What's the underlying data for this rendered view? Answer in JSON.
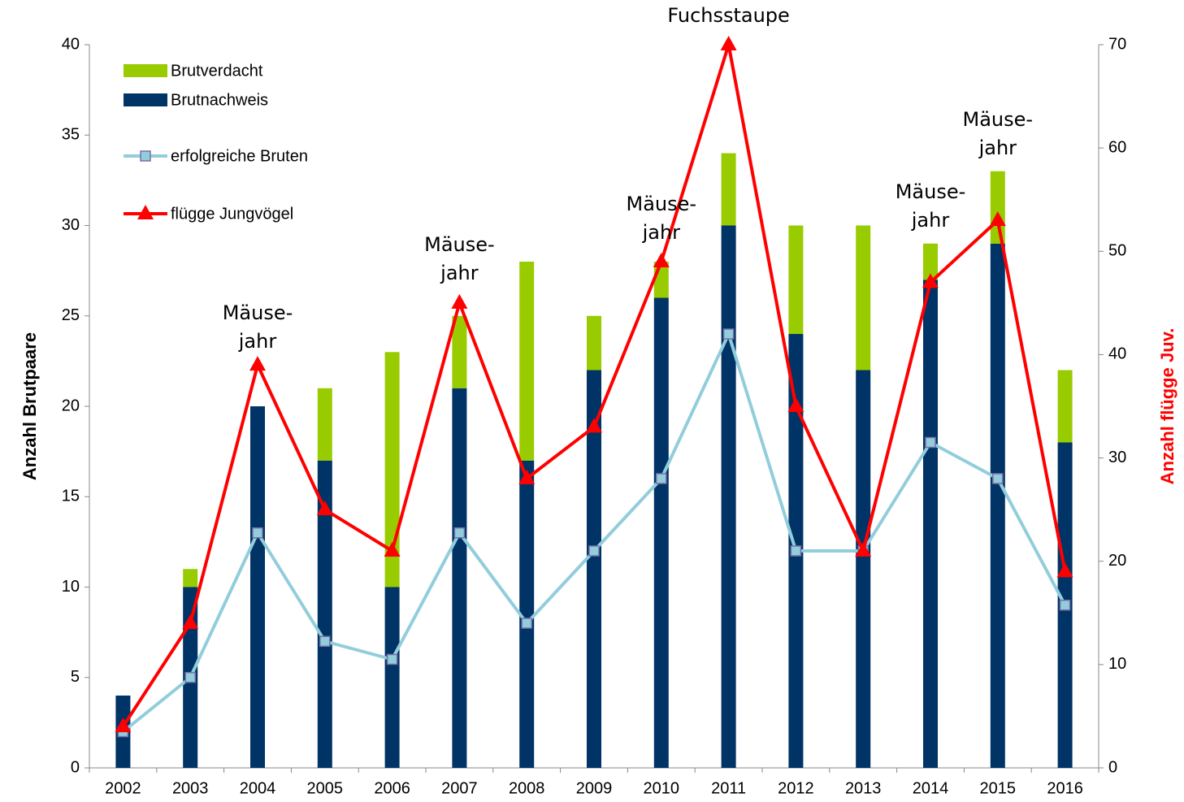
{
  "chart_data": {
    "type": "bar",
    "categories": [
      "2002",
      "2003",
      "2004",
      "2005",
      "2006",
      "2007",
      "2008",
      "2009",
      "2010",
      "2011",
      "2012",
      "2013",
      "2014",
      "2015",
      "2016"
    ],
    "series": [
      {
        "name": "Brutnachweis",
        "type": "bar",
        "stack": true,
        "color": "#003366",
        "values": [
          4,
          10,
          20,
          17,
          10,
          21,
          17,
          22,
          26,
          30,
          24,
          22,
          27,
          29,
          18
        ]
      },
      {
        "name": "Brutverdacht",
        "type": "bar",
        "stack": true,
        "color": "#99cc00",
        "values": [
          0,
          1,
          0,
          4,
          13,
          4,
          11,
          3,
          2,
          4,
          6,
          8,
          2,
          4,
          4
        ]
      },
      {
        "name": "erfolgreiche Bruten",
        "type": "line",
        "marker": "square",
        "color": "#92cddc",
        "values": [
          2,
          5,
          13,
          7,
          6,
          13,
          8,
          12,
          16,
          24,
          12,
          12,
          18,
          16,
          9
        ]
      },
      {
        "name": "flügge Jungvögel",
        "type": "line",
        "marker": "triangle",
        "axis": "y2",
        "color": "#ff0000",
        "values": [
          4,
          14,
          39,
          25,
          21,
          45,
          28,
          33,
          49,
          70,
          35,
          21,
          47,
          53,
          19
        ]
      }
    ],
    "ylabel": "Anzahl Brutpaare",
    "y2label": "Anzahl flügge Juv.",
    "ylim": [
      0,
      40
    ],
    "yticks": [
      0,
      5,
      10,
      15,
      20,
      25,
      30,
      35,
      40
    ],
    "y2lim": [
      0,
      70
    ],
    "y2ticks": [
      0,
      10,
      20,
      30,
      40,
      50,
      60,
      70
    ],
    "grid": false,
    "legend": "upper left",
    "legend_order": [
      1,
      0,
      2,
      3
    ],
    "annotations": [
      {
        "category": "2004",
        "lines": [
          "Mäuse-",
          "jahr"
        ]
      },
      {
        "category": "2007",
        "lines": [
          "Mäuse-",
          "jahr"
        ]
      },
      {
        "category": "2010",
        "lines": [
          "Mäuse-",
          "jahr"
        ]
      },
      {
        "category": "2011",
        "lines": [
          "Fuchsstaupe"
        ]
      },
      {
        "category": "2014",
        "lines": [
          "Mäuse-",
          "jahr"
        ]
      },
      {
        "category": "2015",
        "lines": [
          "Mäuse-",
          "jahr"
        ]
      }
    ]
  }
}
